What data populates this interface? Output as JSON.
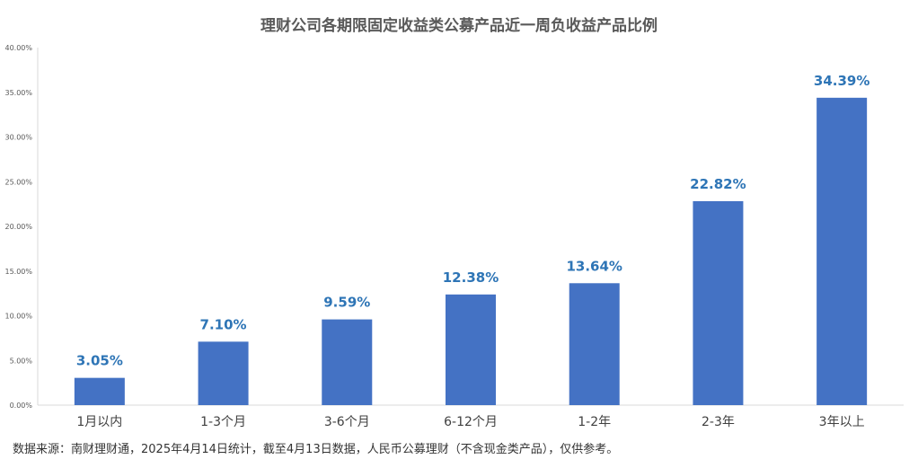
{
  "chart_data": {
    "type": "bar",
    "title": "理财公司各期限固定收益类公募产品近一周负收益产品比例",
    "xlabel": "",
    "ylabel": "",
    "categories": [
      "1月以内",
      "1-3个月",
      "3-6个月",
      "6-12个月",
      "1-2年",
      "2-3年",
      "3年以上"
    ],
    "values": [
      3.05,
      7.1,
      9.59,
      12.38,
      13.64,
      22.82,
      34.39
    ],
    "data_labels": [
      "3.05%",
      "7.10%",
      "9.59%",
      "12.38%",
      "13.64%",
      "22.82%",
      "34.39%"
    ],
    "ylim": [
      0,
      40
    ],
    "yticks": [
      0,
      5,
      10,
      15,
      20,
      25,
      30,
      35,
      40
    ],
    "ytick_labels": [
      "0.00%",
      "5.00%",
      "10.00%",
      "15.00%",
      "20.00%",
      "25.00%",
      "30.00%",
      "35.00%",
      "40.00%"
    ],
    "grid": false,
    "legend": "none",
    "bar_color": "#4472C4",
    "label_color": "#2E75B6"
  },
  "source_note": "数据来源：南财理财通，2025年4月14日统计，截至4月13日数据，人民币公募理财（不含现金类产品），仅供参考。"
}
